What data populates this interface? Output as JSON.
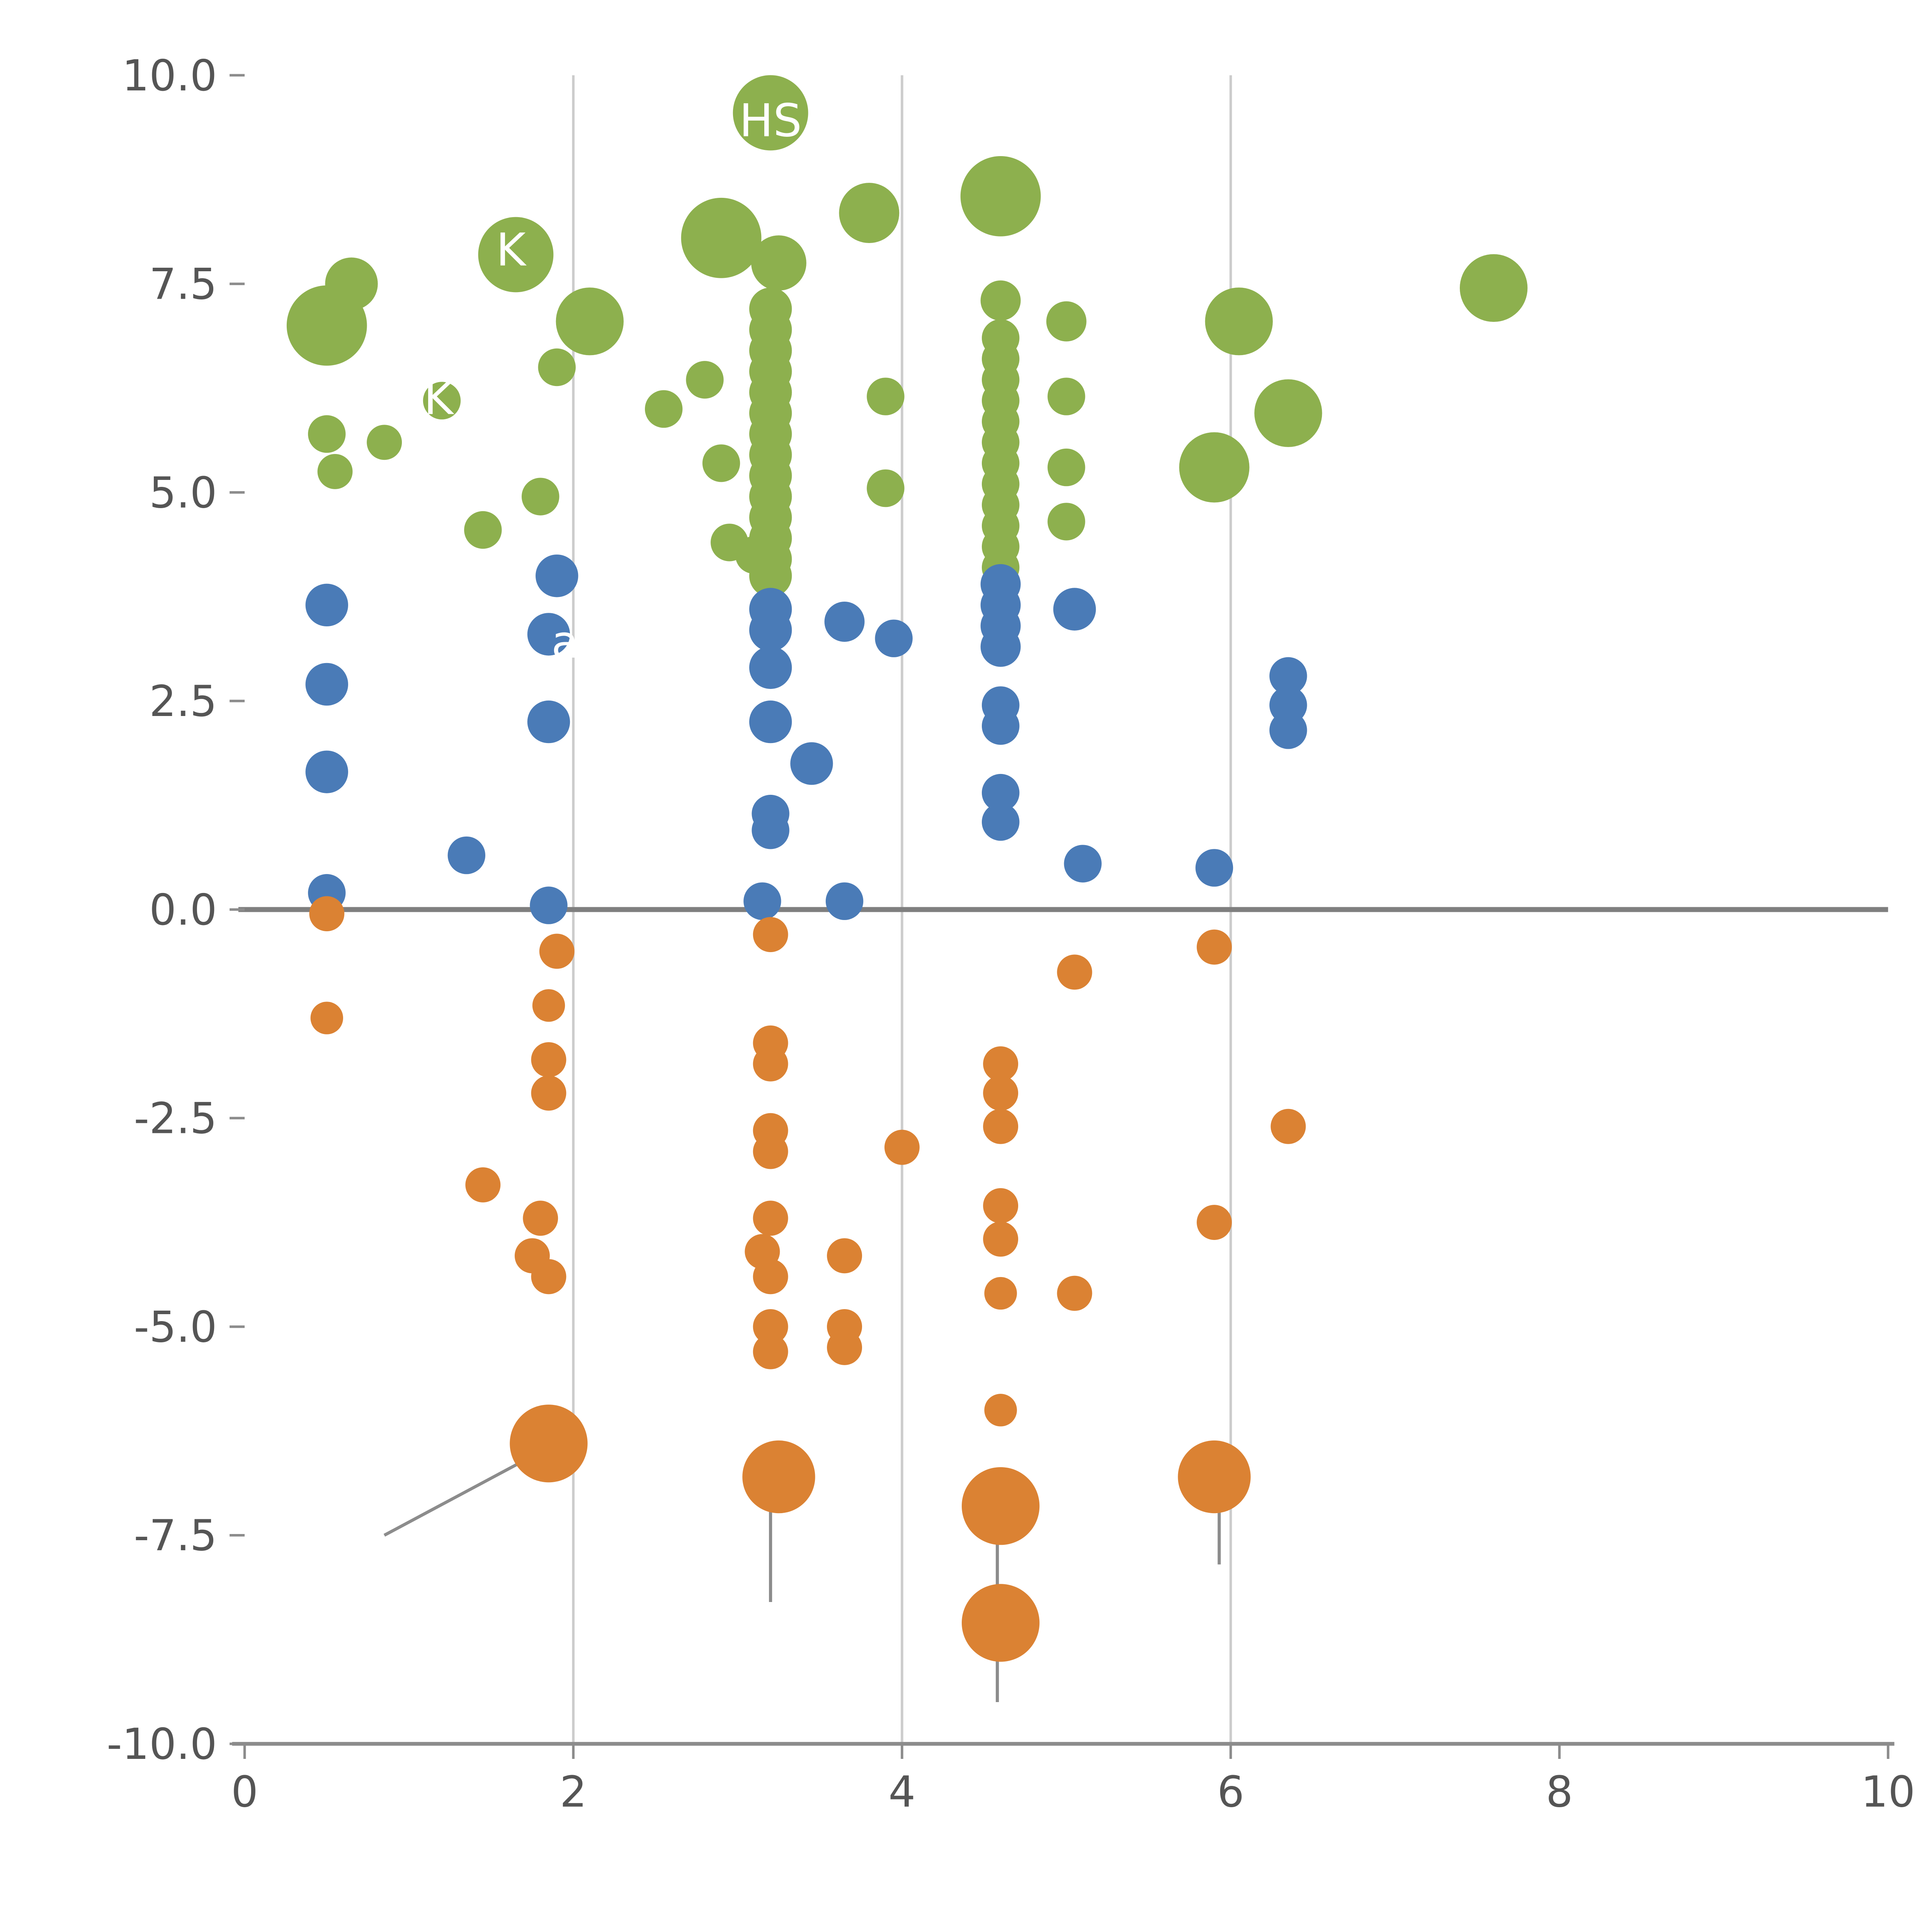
{
  "chart_data": {
    "type": "scatter",
    "title": "",
    "xlabel": "",
    "ylabel": "",
    "xlim": [
      0,
      10
    ],
    "ylim": [
      -10,
      10
    ],
    "x_ticks": {
      "values": [
        0,
        2,
        4,
        6,
        8,
        10
      ],
      "labels": [
        "0",
        "2",
        "4",
        "6",
        "8",
        "10"
      ]
    },
    "y_ticks": {
      "values": [
        -10,
        -7.5,
        -5,
        -2.5,
        0,
        2.5,
        5,
        7.5,
        10
      ],
      "labels": [
        "-10.0",
        "-7.5",
        "-5.0",
        "-2.5",
        "0.0",
        "2.5",
        "5.0",
        "7.5",
        "10.0"
      ]
    },
    "gridlines_x": [
      2,
      4,
      6
    ],
    "zero_line_y": 0,
    "grid_on": true,
    "legend": "none",
    "colors": {
      "green": "#8DB04E",
      "blue": "#4A7BB7",
      "orange": "#DB8233",
      "grid": "#cccccc",
      "zero_line": "#7f7f7f",
      "axis": "#8c8c8c",
      "tick_text": "#555555",
      "annotation_line": "#8c8c8c",
      "bubble_label": "#ffffff"
    },
    "series": [
      {
        "name": "high-positive-green",
        "color_key": "green",
        "points": [
          [
            3.2,
            9.55,
            30
          ],
          [
            4.6,
            8.55,
            32
          ],
          [
            3.8,
            8.35,
            24
          ],
          [
            2.9,
            8.05,
            32
          ],
          [
            1.65,
            7.85,
            30
          ],
          [
            3.25,
            7.75,
            22
          ],
          [
            0.65,
            7.5,
            21
          ],
          [
            7.6,
            7.45,
            27
          ],
          [
            4.6,
            7.3,
            16
          ],
          [
            0.5,
            7.0,
            32
          ],
          [
            6.05,
            7.05,
            27
          ],
          [
            5.0,
            7.05,
            16
          ],
          [
            2.1,
            7.05,
            27
          ],
          [
            3.2,
            7.2,
            17
          ],
          [
            3.2,
            6.95,
            17
          ],
          [
            3.2,
            6.7,
            17
          ],
          [
            4.6,
            6.85,
            15
          ],
          [
            4.6,
            6.6,
            15
          ],
          [
            1.9,
            6.5,
            15
          ],
          [
            3.2,
            6.45,
            17
          ],
          [
            4.6,
            6.35,
            15
          ],
          [
            2.8,
            6.35,
            15
          ],
          [
            3.2,
            6.2,
            17
          ],
          [
            5.0,
            6.15,
            15
          ],
          [
            3.9,
            6.15,
            15
          ],
          [
            4.6,
            6.1,
            15
          ],
          [
            1.2,
            6.1,
            15
          ],
          [
            2.55,
            6.0,
            15
          ],
          [
            6.35,
            5.95,
            27
          ],
          [
            3.2,
            5.95,
            17
          ],
          [
            4.6,
            5.85,
            15
          ],
          [
            0.5,
            5.7,
            15
          ],
          [
            3.2,
            5.7,
            17
          ],
          [
            0.85,
            5.6,
            14
          ],
          [
            4.6,
            5.6,
            15
          ],
          [
            3.2,
            5.45,
            17
          ],
          [
            4.6,
            5.35,
            15
          ],
          [
            2.9,
            5.35,
            15
          ],
          [
            5.9,
            5.3,
            28
          ],
          [
            5.0,
            5.3,
            15
          ],
          [
            0.55,
            5.25,
            14
          ],
          [
            3.2,
            5.2,
            17
          ],
          [
            4.6,
            5.1,
            15
          ],
          [
            3.9,
            5.05,
            15
          ],
          [
            1.8,
            4.95,
            15
          ],
          [
            3.2,
            4.95,
            17
          ],
          [
            4.6,
            4.85,
            15
          ],
          [
            3.2,
            4.7,
            17
          ],
          [
            5.0,
            4.65,
            15
          ],
          [
            4.6,
            4.6,
            15
          ],
          [
            1.45,
            4.55,
            15
          ],
          [
            3.2,
            4.45,
            17
          ],
          [
            2.95,
            4.4,
            15
          ],
          [
            4.6,
            4.35,
            15
          ],
          [
            3.2,
            4.2,
            17
          ],
          [
            3.1,
            4.25,
            15
          ],
          [
            4.6,
            4.1,
            15
          ],
          [
            3.2,
            4.0,
            17
          ]
        ]
      },
      {
        "name": "low-positive-blue",
        "color_key": "blue",
        "points": [
          [
            1.9,
            4.0,
            17
          ],
          [
            0.5,
            3.65,
            17
          ],
          [
            4.6,
            3.9,
            16
          ],
          [
            3.2,
            3.6,
            17
          ],
          [
            4.6,
            3.65,
            16
          ],
          [
            5.05,
            3.6,
            17
          ],
          [
            3.65,
            3.45,
            16
          ],
          [
            3.2,
            3.35,
            17
          ],
          [
            4.6,
            3.4,
            16
          ],
          [
            1.85,
            3.3,
            17
          ],
          [
            3.95,
            3.25,
            15
          ],
          [
            4.6,
            3.15,
            16
          ],
          [
            3.2,
            2.9,
            17
          ],
          [
            6.35,
            2.8,
            15
          ],
          [
            0.5,
            2.7,
            17
          ],
          [
            6.35,
            2.45,
            15
          ],
          [
            4.6,
            2.45,
            15
          ],
          [
            1.85,
            2.25,
            17
          ],
          [
            3.2,
            2.25,
            17
          ],
          [
            4.6,
            2.2,
            15
          ],
          [
            6.35,
            2.15,
            15
          ],
          [
            3.45,
            1.75,
            17
          ],
          [
            0.5,
            1.65,
            17
          ],
          [
            4.6,
            1.4,
            15
          ],
          [
            3.2,
            1.15,
            15
          ],
          [
            4.6,
            1.05,
            15
          ],
          [
            3.2,
            0.95,
            15
          ],
          [
            1.35,
            0.65,
            15
          ],
          [
            5.1,
            0.55,
            15
          ],
          [
            5.9,
            0.5,
            15
          ],
          [
            0.5,
            0.2,
            15
          ],
          [
            1.85,
            0.05,
            15
          ],
          [
            3.15,
            0.1,
            15
          ],
          [
            3.65,
            0.1,
            15
          ]
        ]
      },
      {
        "name": "negative-orange",
        "color_key": "orange",
        "points": [
          [
            0.5,
            -0.05,
            14
          ],
          [
            3.2,
            -0.3,
            14
          ],
          [
            1.9,
            -0.5,
            14
          ],
          [
            5.9,
            -0.45,
            14
          ],
          [
            5.05,
            -0.75,
            14
          ],
          [
            1.85,
            -1.15,
            13
          ],
          [
            0.5,
            -1.3,
            13
          ],
          [
            3.2,
            -1.6,
            14
          ],
          [
            3.2,
            -1.85,
            14
          ],
          [
            1.85,
            -1.8,
            14
          ],
          [
            4.6,
            -1.85,
            14
          ],
          [
            1.85,
            -2.2,
            14
          ],
          [
            4.6,
            -2.2,
            14
          ],
          [
            4.6,
            -2.6,
            14
          ],
          [
            6.35,
            -2.6,
            14
          ],
          [
            3.2,
            -2.65,
            14
          ],
          [
            3.2,
            -2.9,
            14
          ],
          [
            4.0,
            -2.85,
            14
          ],
          [
            1.45,
            -3.3,
            14
          ],
          [
            4.6,
            -3.55,
            14
          ],
          [
            1.8,
            -3.7,
            14
          ],
          [
            3.2,
            -3.7,
            14
          ],
          [
            4.6,
            -3.95,
            14
          ],
          [
            3.15,
            -4.1,
            14
          ],
          [
            1.75,
            -4.15,
            14
          ],
          [
            3.65,
            -4.15,
            14
          ],
          [
            1.85,
            -4.4,
            14
          ],
          [
            3.2,
            -4.4,
            14
          ],
          [
            5.9,
            -3.75,
            14
          ],
          [
            4.6,
            -4.6,
            13
          ],
          [
            5.05,
            -4.6,
            14
          ],
          [
            3.2,
            -5.0,
            14
          ],
          [
            3.65,
            -5.0,
            14
          ],
          [
            3.2,
            -5.3,
            14
          ],
          [
            3.65,
            -5.25,
            14
          ],
          [
            4.6,
            -6.0,
            13
          ],
          [
            1.85,
            -6.4,
            31
          ],
          [
            3.25,
            -6.8,
            29
          ],
          [
            5.9,
            -6.8,
            29
          ],
          [
            4.6,
            -7.15,
            31
          ],
          [
            4.6,
            -8.55,
            31
          ]
        ]
      }
    ],
    "bubble_labels": [
      {
        "x": 3.2,
        "y": 9.45,
        "text": "HS"
      },
      {
        "x": 1.62,
        "y": 7.9,
        "text": "K"
      },
      {
        "x": 1.18,
        "y": 6.12,
        "text": "K"
      },
      {
        "x": 1.95,
        "y": 3.2,
        "text": "a"
      }
    ],
    "annotation_lines": [
      {
        "x1": 0.85,
        "y1": -7.5,
        "x2": 1.8,
        "y2": -6.5
      },
      {
        "x1": 3.2,
        "y1": -7.1,
        "x2": 3.2,
        "y2": -8.3
      },
      {
        "x1": 4.58,
        "y1": -7.5,
        "x2": 4.58,
        "y2": -8.4
      },
      {
        "x1": 4.58,
        "y1": -8.8,
        "x2": 4.58,
        "y2": -9.5
      },
      {
        "x1": 5.93,
        "y1": -7.0,
        "x2": 5.93,
        "y2": -7.85
      }
    ]
  }
}
